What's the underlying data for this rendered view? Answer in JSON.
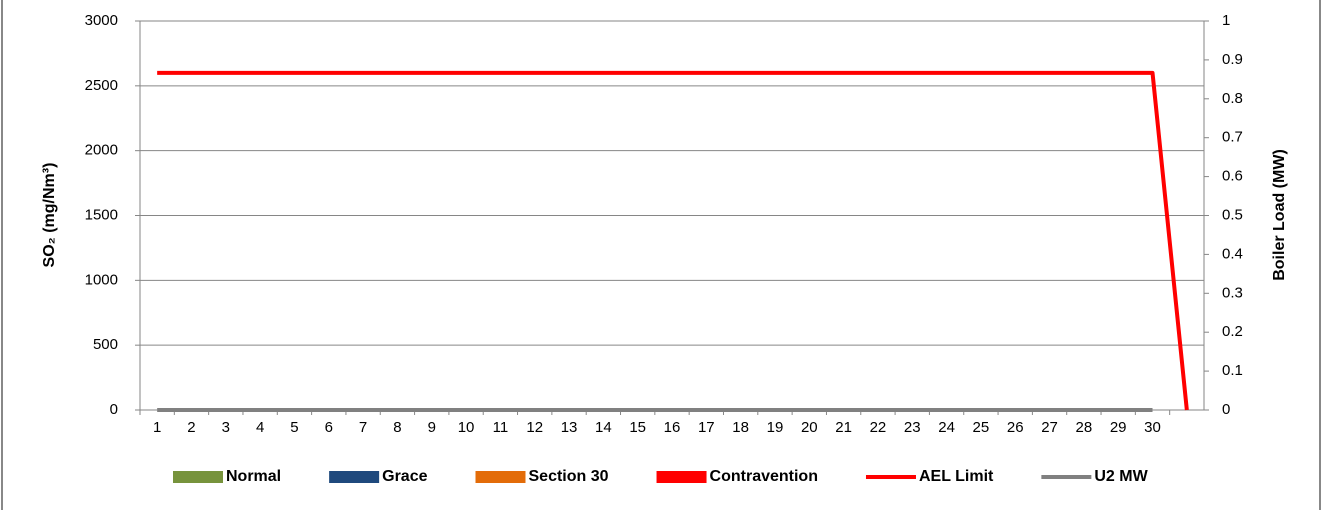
{
  "chart_data": {
    "type": "bar_line",
    "categories": [
      "1",
      "2",
      "3",
      "4",
      "5",
      "6",
      "7",
      "8",
      "9",
      "10",
      "11",
      "12",
      "13",
      "14",
      "15",
      "16",
      "17",
      "18",
      "19",
      "20",
      "21",
      "22",
      "23",
      "24",
      "25",
      "26",
      "27",
      "28",
      "29",
      "30",
      null
    ],
    "y_label": "SO₂  (mg/Nm³)",
    "y2_label": "Boiler Load (MW)",
    "ylim": [
      0,
      3000
    ],
    "yticks": [
      0,
      500,
      1000,
      1500,
      2000,
      2500,
      3000
    ],
    "y2lim": [
      0,
      1
    ],
    "y2ticks": [
      0,
      0.1,
      0.2,
      0.3,
      0.4,
      0.5,
      0.6,
      0.7,
      0.8,
      0.9,
      1
    ],
    "grid": true,
    "legend": "bottom",
    "series": [
      {
        "name": "Normal",
        "type": "bar",
        "color": "#77933c",
        "values": [
          0,
          0,
          0,
          0,
          0,
          0,
          0,
          0,
          0,
          0,
          0,
          0,
          0,
          0,
          0,
          0,
          0,
          0,
          0,
          0,
          0,
          0,
          0,
          0,
          0,
          0,
          0,
          0,
          0,
          0,
          null
        ]
      },
      {
        "name": "Grace",
        "type": "bar",
        "color": "#1f497d",
        "values": [
          0,
          0,
          0,
          0,
          0,
          0,
          0,
          0,
          0,
          0,
          0,
          0,
          0,
          0,
          0,
          0,
          0,
          0,
          0,
          0,
          0,
          0,
          0,
          0,
          0,
          0,
          0,
          0,
          0,
          0,
          null
        ]
      },
      {
        "name": "Section 30",
        "type": "bar",
        "color": "#e36c09",
        "values": [
          0,
          0,
          0,
          0,
          0,
          0,
          0,
          0,
          0,
          0,
          0,
          0,
          0,
          0,
          0,
          0,
          0,
          0,
          0,
          0,
          0,
          0,
          0,
          0,
          0,
          0,
          0,
          0,
          0,
          0,
          null
        ]
      },
      {
        "name": "Contravention",
        "type": "bar",
        "color": "#ff0000",
        "values": [
          0,
          0,
          0,
          0,
          0,
          0,
          0,
          0,
          0,
          0,
          0,
          0,
          0,
          0,
          0,
          0,
          0,
          0,
          0,
          0,
          0,
          0,
          0,
          0,
          0,
          0,
          0,
          0,
          0,
          0,
          null
        ]
      },
      {
        "name": "AEL Limit",
        "type": "line",
        "color": "#ff0000",
        "values": [
          2600,
          2600,
          2600,
          2600,
          2600,
          2600,
          2600,
          2600,
          2600,
          2600,
          2600,
          2600,
          2600,
          2600,
          2600,
          2600,
          2600,
          2600,
          2600,
          2600,
          2600,
          2600,
          2600,
          2600,
          2600,
          2600,
          2600,
          2600,
          2600,
          2600,
          0
        ]
      },
      {
        "name": "U2 MW",
        "type": "line",
        "axis": "y2",
        "color": "#808080",
        "values": [
          0,
          0,
          0,
          0,
          0,
          0,
          0,
          0,
          0,
          0,
          0,
          0,
          0,
          0,
          0,
          0,
          0,
          0,
          0,
          0,
          0,
          0,
          0,
          0,
          0,
          0,
          0,
          0,
          0,
          0,
          null
        ]
      }
    ]
  }
}
